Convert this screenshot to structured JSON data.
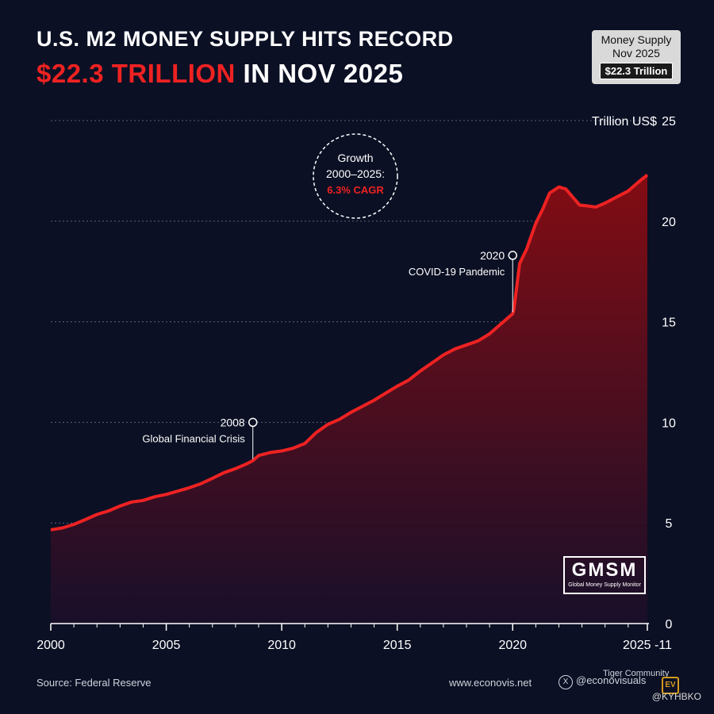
{
  "header": {
    "title_line1": "U.S. M2 MONEY SUPPLY HITS RECORD",
    "title_highlight": "$22.3 TRILLION",
    "title_rest": " IN NOV 2025"
  },
  "badge": {
    "line1": "Money Supply",
    "line2": "Nov 2025",
    "value": "$22.3 Trillion"
  },
  "footer": {
    "source": "Source: Federal Reserve",
    "site": "www.econovis.net",
    "x_handle": "@econovisuals",
    "watermark": "Tiger Community",
    "handle2": "@KYHBKO",
    "ev_logo": "EV"
  },
  "logo": {
    "name": "GMSM",
    "subtitle": "Global Money Supply Monitor"
  },
  "colors": {
    "background": "#0b1024",
    "line": "#ee2222",
    "accent": "#ee2222"
  },
  "chart_data": {
    "type": "area",
    "title": "U.S. M2 MONEY SUPPLY HITS RECORD $22.3 TRILLION IN NOV 2025",
    "ylabel": "Trillion US$",
    "xlabel": "",
    "xlim": [
      2000,
      2025.9
    ],
    "ylim": [
      0,
      25
    ],
    "x_ticks": [
      2000,
      2005,
      2010,
      2015,
      2020,
      2025.83
    ],
    "x_tick_labels": [
      "2000",
      "2005",
      "2010",
      "2015",
      "2020",
      "2025 -11"
    ],
    "y_ticks": [
      0,
      5,
      10,
      15,
      20,
      25
    ],
    "y_tick_labels": [
      "0",
      "5",
      "10",
      "15",
      "20",
      "25"
    ],
    "grid": "horizontal dashed",
    "series": [
      {
        "x": [
          2000,
          2000.5,
          2001,
          2001.5,
          2002,
          2002.5,
          2003,
          2003.5,
          2004,
          2004.5,
          2005,
          2005.5,
          2006,
          2006.5,
          2007,
          2007.5,
          2008,
          2008.5,
          2008.75,
          2009,
          2009.5,
          2010,
          2010.5,
          2011,
          2011.5,
          2012,
          2012.5,
          2013,
          2013.5,
          2014,
          2014.5,
          2015,
          2015.5,
          2016,
          2016.5,
          2017,
          2017.5,
          2018,
          2018.5,
          2019,
          2019.5,
          2020,
          2020.05,
          2020.3,
          2020.6,
          2021,
          2021.3,
          2021.6,
          2022,
          2022.3,
          2022.6,
          2022.9,
          2023.3,
          2023.6,
          2024,
          2024.5,
          2025,
          2025.5,
          2025.83
        ],
        "values": [
          4.66,
          4.75,
          4.93,
          5.17,
          5.42,
          5.6,
          5.84,
          6.04,
          6.12,
          6.3,
          6.42,
          6.58,
          6.75,
          6.95,
          7.22,
          7.5,
          7.7,
          7.95,
          8.1,
          8.35,
          8.5,
          8.58,
          8.72,
          8.95,
          9.5,
          9.9,
          10.15,
          10.5,
          10.8,
          11.1,
          11.45,
          11.8,
          12.1,
          12.55,
          12.95,
          13.35,
          13.65,
          13.85,
          14.05,
          14.4,
          14.9,
          15.4,
          15.6,
          17.9,
          18.6,
          19.9,
          20.6,
          21.4,
          21.7,
          21.6,
          21.2,
          20.8,
          20.75,
          20.7,
          20.9,
          21.2,
          21.5,
          22.0,
          22.3
        ]
      }
    ],
    "annotations": [
      {
        "x": 2008.75,
        "y": 10,
        "lines": [
          "2008",
          "Global Financial Crisis"
        ]
      },
      {
        "x": 2020.0,
        "y": 18.3,
        "lines": [
          "2020",
          "COVID-19 Pandemic"
        ]
      },
      {
        "lines": [
          "Growth",
          "2000–2025:",
          "6.3% CAGR"
        ]
      }
    ]
  }
}
